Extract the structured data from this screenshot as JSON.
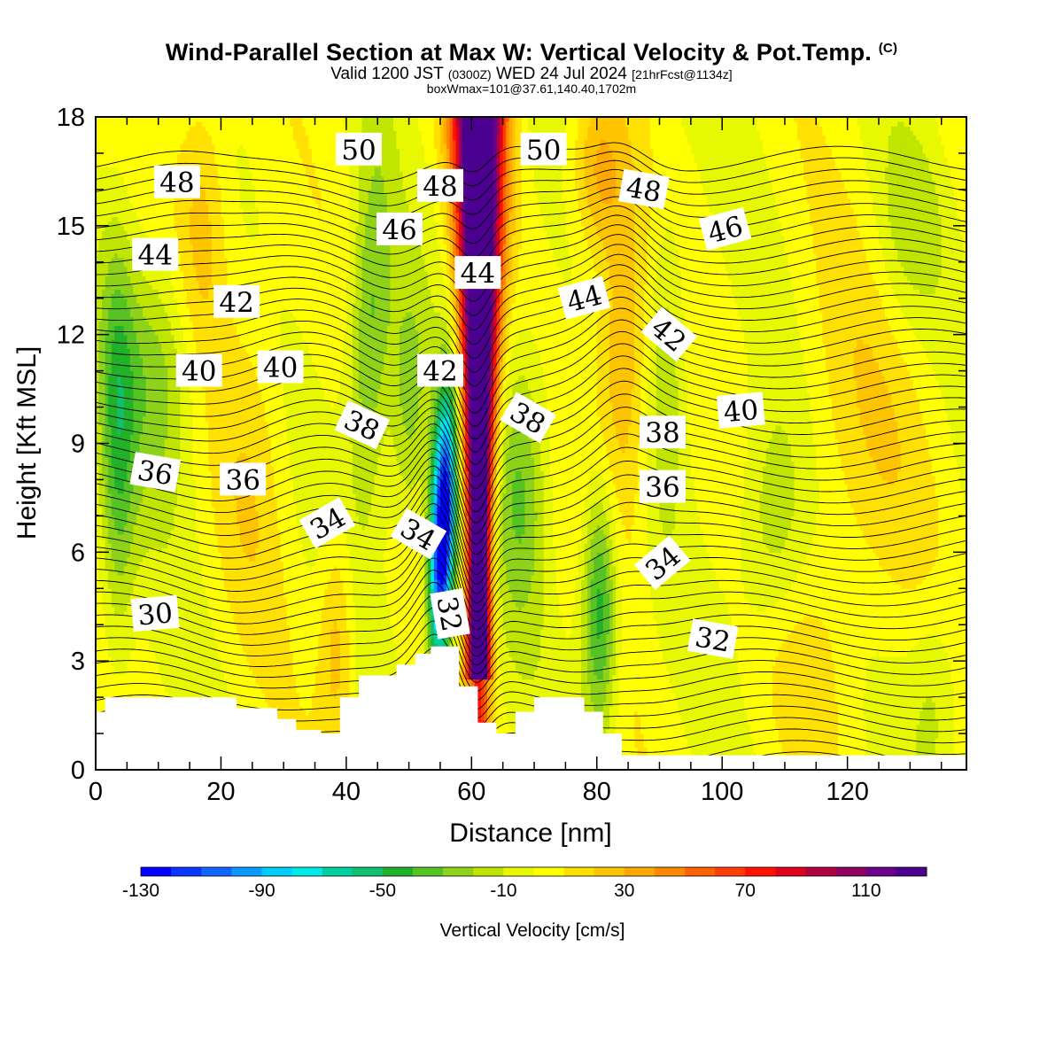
{
  "header": {
    "title": "Wind-Parallel Section at Max W: Vertical Velocity & Pot.Temp.",
    "title_mark": "(C)",
    "valid_prefix": "Valid 1200 JST",
    "valid_utc": "(0300Z)",
    "valid_date": "WED 24 Jul 2024",
    "forecast_info": "[21hrFcst@1134z]",
    "box_info": "boxWmax=101@37.61,140.40,1702m"
  },
  "chart_data": {
    "type": "heatmap",
    "xlabel": "Distance [nm]",
    "ylabel": "Height [Kft MSL]",
    "xlim": [
      0,
      139
    ],
    "ylim": [
      0,
      18
    ],
    "x_ticks": [
      0,
      20,
      40,
      60,
      80,
      100,
      120
    ],
    "y_ticks": [
      0,
      3,
      6,
      9,
      12,
      15,
      18
    ],
    "colorbar": {
      "label": "Vertical Velocity [cm/s]",
      "range": [
        -130,
        130
      ],
      "step": 10,
      "tick_values": [
        -130,
        -90,
        -50,
        -10,
        30,
        70,
        110
      ],
      "colors": [
        "#0000ff",
        "#0a35ff",
        "#1166ff",
        "#0a99ff",
        "#00ccff",
        "#00e8e8",
        "#00d0a0",
        "#10c070",
        "#22b22a",
        "#55c422",
        "#8ed21a",
        "#bfe500",
        "#e8f800",
        "#ffff00",
        "#ffe000",
        "#ffc400",
        "#ffa800",
        "#ff8800",
        "#ff6200",
        "#ff3c00",
        "#ff1200",
        "#e00020",
        "#b00040",
        "#900060",
        "#6a008c",
        "#4b0090"
      ]
    },
    "terrain": [
      [
        0,
        1.6
      ],
      [
        1.5,
        1.6
      ],
      [
        1.5,
        2.0
      ],
      [
        22.5,
        2.0
      ],
      [
        22.5,
        1.7
      ],
      [
        29,
        1.7
      ],
      [
        29,
        1.4
      ],
      [
        32,
        1.4
      ],
      [
        32,
        1.1
      ],
      [
        36,
        1.1
      ],
      [
        36,
        1.0
      ],
      [
        39,
        1.0
      ],
      [
        39,
        2.0
      ],
      [
        42,
        2.0
      ],
      [
        42,
        2.6
      ],
      [
        48,
        2.6
      ],
      [
        48,
        2.9
      ],
      [
        51,
        2.9
      ],
      [
        51,
        3.2
      ],
      [
        53.5,
        3.2
      ],
      [
        53.5,
        3.4
      ],
      [
        58,
        3.4
      ],
      [
        58,
        2.3
      ],
      [
        61,
        2.3
      ],
      [
        61,
        1.3
      ],
      [
        64,
        1.3
      ],
      [
        64,
        1.0
      ],
      [
        67,
        1.0
      ],
      [
        67,
        1.6
      ],
      [
        70,
        1.6
      ],
      [
        70,
        2.0
      ],
      [
        78,
        2.0
      ],
      [
        78,
        1.6
      ],
      [
        81,
        1.6
      ],
      [
        81,
        1.0
      ],
      [
        84,
        1.0
      ],
      [
        84,
        0.4
      ],
      [
        87,
        0.4
      ],
      [
        87,
        0.4
      ],
      [
        139,
        0.4
      ]
    ],
    "contour_labels": [
      {
        "text": "50",
        "x": 42,
        "y": 17.1,
        "angle": 0
      },
      {
        "text": "50",
        "x": 71.5,
        "y": 17.1,
        "angle": 0
      },
      {
        "text": "48",
        "x": 13,
        "y": 16.2,
        "angle": 0
      },
      {
        "text": "48",
        "x": 55,
        "y": 16.1,
        "angle": 0
      },
      {
        "text": "48",
        "x": 87.5,
        "y": 16.0,
        "angle": 10
      },
      {
        "text": "46",
        "x": 48.5,
        "y": 14.9,
        "angle": 0
      },
      {
        "text": "46",
        "x": 100.5,
        "y": 14.9,
        "angle": -15
      },
      {
        "text": "44",
        "x": 9.5,
        "y": 14.2,
        "angle": 0
      },
      {
        "text": "44",
        "x": 61,
        "y": 13.7,
        "angle": 0
      },
      {
        "text": "44",
        "x": 78,
        "y": 13.0,
        "angle": -15
      },
      {
        "text": "42",
        "x": 22.5,
        "y": 12.9,
        "angle": 0
      },
      {
        "text": "42",
        "x": 91.5,
        "y": 12.0,
        "angle": 40
      },
      {
        "text": "42",
        "x": 55,
        "y": 11.0,
        "angle": 0
      },
      {
        "text": "40",
        "x": 16.5,
        "y": 11.0,
        "angle": 0
      },
      {
        "text": "40",
        "x": 29.5,
        "y": 11.1,
        "angle": 0
      },
      {
        "text": "40",
        "x": 103,
        "y": 9.9,
        "angle": -5
      },
      {
        "text": "38",
        "x": 42.5,
        "y": 9.5,
        "angle": 25
      },
      {
        "text": "38",
        "x": 69,
        "y": 9.7,
        "angle": 30
      },
      {
        "text": "38",
        "x": 90.5,
        "y": 9.3,
        "angle": 0
      },
      {
        "text": "36",
        "x": 9.5,
        "y": 8.2,
        "angle": 10
      },
      {
        "text": "36",
        "x": 23.5,
        "y": 8.0,
        "angle": 0
      },
      {
        "text": "36",
        "x": 90.5,
        "y": 7.8,
        "angle": 0
      },
      {
        "text": "34",
        "x": 37,
        "y": 6.8,
        "angle": -30
      },
      {
        "text": "34",
        "x": 51.5,
        "y": 6.5,
        "angle": 30
      },
      {
        "text": "34",
        "x": 90.5,
        "y": 5.7,
        "angle": -40
      },
      {
        "text": "32",
        "x": 56.5,
        "y": 4.3,
        "angle": 80
      },
      {
        "text": "32",
        "x": 98.5,
        "y": 3.6,
        "angle": 10
      },
      {
        "text": "30",
        "x": 9.5,
        "y": 4.3,
        "angle": -5
      }
    ]
  }
}
